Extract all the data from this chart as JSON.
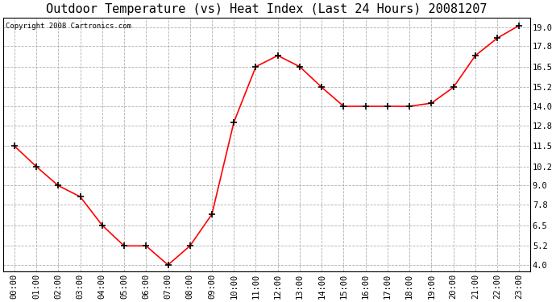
{
  "title": "Outdoor Temperature (vs) Heat Index (Last 24 Hours) 20081207",
  "copyright": "Copyright 2008 Cartronics.com",
  "line_color": "#ff0000",
  "bg_color": "#ffffff",
  "plot_bg_color": "#ffffff",
  "grid_color": "#b0b0b0",
  "marker": "+",
  "marker_color": "#000000",
  "marker_size": 6,
  "marker_lw": 1.2,
  "hours": [
    "00:00",
    "01:00",
    "02:00",
    "03:00",
    "04:00",
    "05:00",
    "06:00",
    "07:00",
    "08:00",
    "09:00",
    "10:00",
    "11:00",
    "12:00",
    "13:00",
    "14:00",
    "15:00",
    "16:00",
    "17:00",
    "18:00",
    "19:00",
    "20:00",
    "21:00",
    "22:00",
    "23:00"
  ],
  "values": [
    11.5,
    10.2,
    9.0,
    8.3,
    6.5,
    5.2,
    5.2,
    4.0,
    5.2,
    7.2,
    13.0,
    16.5,
    17.2,
    16.5,
    15.2,
    14.0,
    14.0,
    14.0,
    14.0,
    14.2,
    15.2,
    17.2,
    18.3,
    19.1
  ],
  "yticks": [
    4.0,
    5.2,
    6.5,
    7.8,
    9.0,
    10.2,
    11.5,
    12.8,
    14.0,
    15.2,
    16.5,
    17.8,
    19.0
  ],
  "ylim": [
    3.6,
    19.6
  ],
  "title_fontsize": 11,
  "tick_fontsize": 7.5,
  "copyright_fontsize": 6.5
}
